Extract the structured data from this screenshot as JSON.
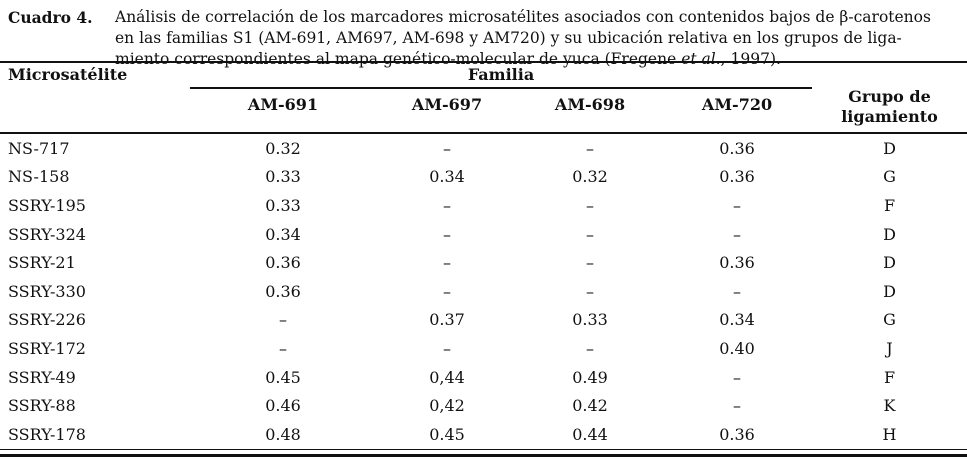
{
  "caption": {
    "label": "Cuadro 4.",
    "line1": "Análisis de correlación de  los marcadores microsatélites asociados con contenidos bajos de β-carotenos",
    "line2": "en las familias S1 (AM-691, AM697, AM-698 y AM720) y su ubicación relativa en los grupos de liga-",
    "line3_pre": "miento correspondientes al mapa genético-molecular de yuca (Fregene ",
    "line3_italic": "et al.",
    "line3_post": ", 1997)."
  },
  "table": {
    "marker_header": "Microsatélite",
    "family_header": "Familia",
    "family_columns": [
      "AM-691",
      "AM-697",
      "AM-698",
      "AM-720"
    ],
    "group_header_line1": "Grupo de",
    "group_header_line2": "ligamiento",
    "rows": [
      {
        "marker": "NS-717",
        "values": [
          "0.32",
          "–",
          "–",
          "0.36"
        ],
        "group": "D"
      },
      {
        "marker": "NS-158",
        "values": [
          "0.33",
          "0.34",
          "0.32",
          "0.36"
        ],
        "group": "G"
      },
      {
        "marker": "SSRY-195",
        "values": [
          "0.33",
          "–",
          "–",
          "–"
        ],
        "group": "F"
      },
      {
        "marker": "SSRY-324",
        "values": [
          "0.34",
          "–",
          "–",
          "–"
        ],
        "group": "D"
      },
      {
        "marker": "SSRY-21",
        "values": [
          "0.36",
          "–",
          "–",
          "0.36"
        ],
        "group": "D"
      },
      {
        "marker": "SSRY-330",
        "values": [
          "0.36",
          "–",
          "–",
          "–"
        ],
        "group": "D"
      },
      {
        "marker": "SSRY-226",
        "values": [
          "–",
          "0.37",
          "0.33",
          "0.34"
        ],
        "group": "G"
      },
      {
        "marker": "SSRY-172",
        "values": [
          "–",
          "–",
          "–",
          "0.40"
        ],
        "group": "J"
      },
      {
        "marker": "SSRY-49",
        "values": [
          "0.45",
          "0,44",
          "0.49",
          "–"
        ],
        "group": "F"
      },
      {
        "marker": "SSRY-88",
        "values": [
          "0.46",
          "0,42",
          "0.42",
          "–"
        ],
        "group": "K"
      },
      {
        "marker": "SSRY-178",
        "values": [
          "0.48",
          "0.45",
          "0.44",
          "0.36"
        ],
        "group": "H"
      }
    ]
  },
  "colors": {
    "text": "#111111",
    "rule": "#111111",
    "background": "#ffffff"
  }
}
